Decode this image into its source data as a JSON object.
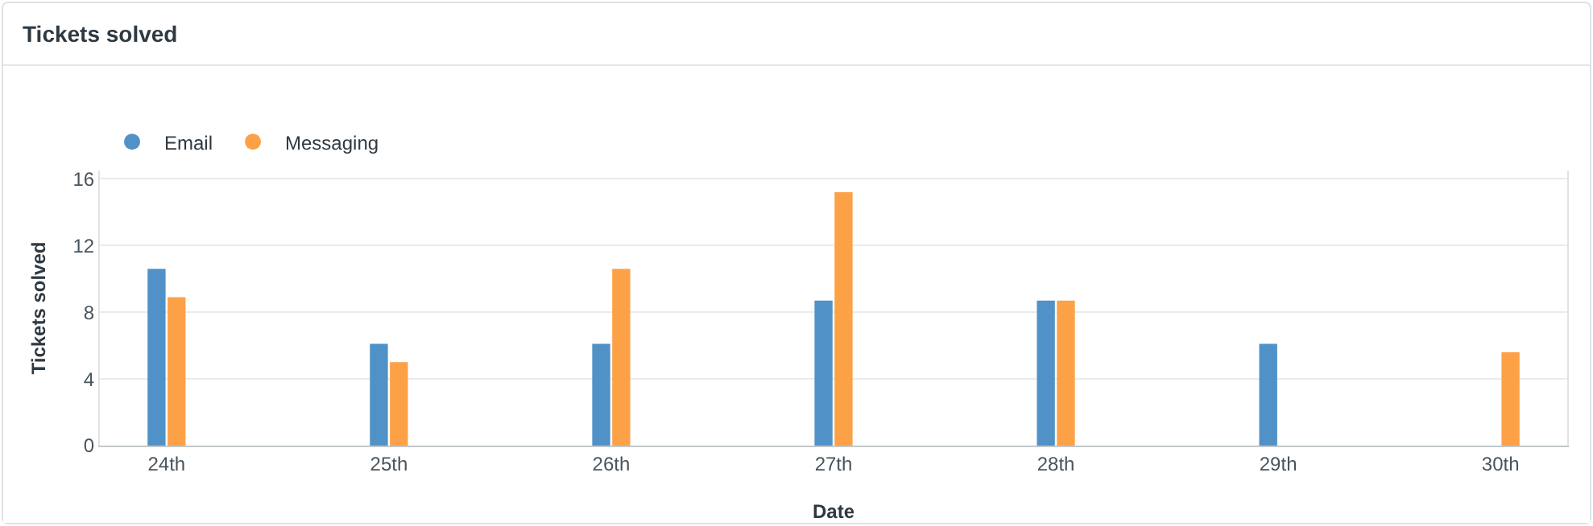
{
  "chart_data": {
    "type": "bar",
    "title": "Tickets solved",
    "xlabel": "Date",
    "ylabel": "Tickets solved",
    "categories": [
      "24th",
      "25th",
      "26th",
      "27th",
      "28th",
      "29th",
      "30th"
    ],
    "series": [
      {
        "name": "Email",
        "color": "#5092c7",
        "values": [
          10.6,
          6.1,
          6.1,
          8.7,
          8.7,
          6.1,
          null
        ]
      },
      {
        "name": "Messaging",
        "color": "#fca146",
        "values": [
          8.9,
          5.0,
          10.6,
          15.2,
          8.7,
          null,
          5.6
        ]
      }
    ],
    "ylim": [
      0,
      16.5
    ],
    "yticks": [
      0,
      4,
      8,
      12,
      16
    ],
    "grid": "y",
    "legend": "top left"
  }
}
